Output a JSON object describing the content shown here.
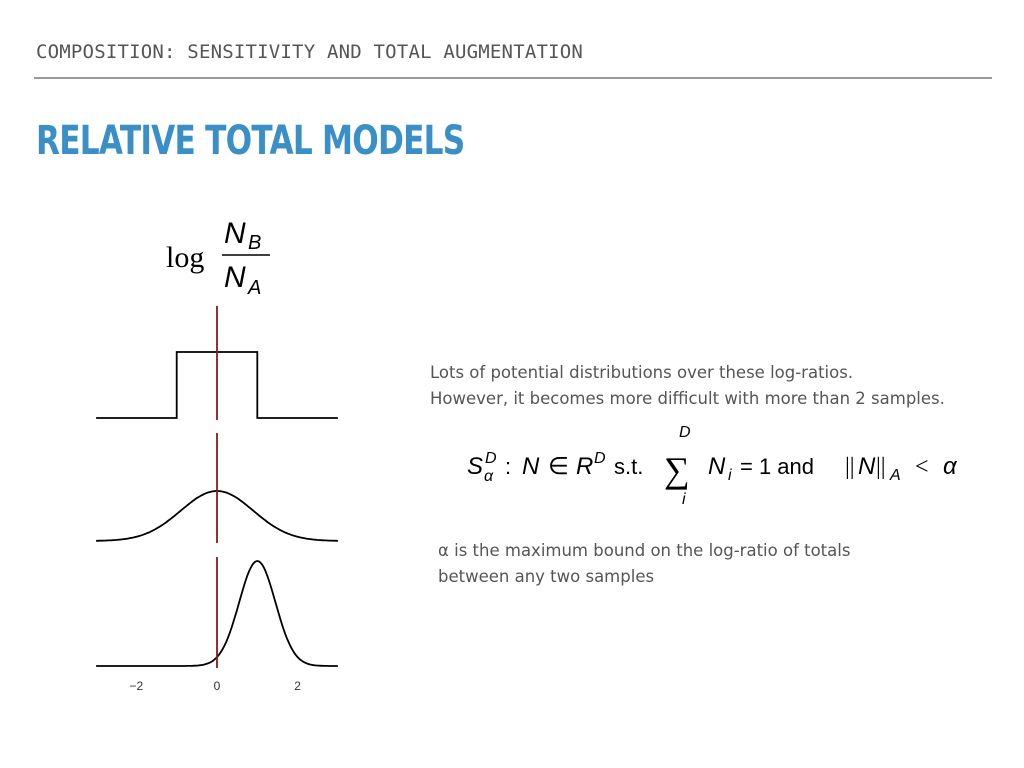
{
  "header": {
    "kicker": "COMPOSITION: SENSITIVITY AND TOTAL AUGMENTATION",
    "title": "RELATIVE TOTAL MODELS"
  },
  "formula_top": {
    "log": "log",
    "numerator_base": "N",
    "numerator_sub": "B",
    "denominator_base": "N",
    "denominator_sub": "A"
  },
  "description_1": {
    "line1": "Lots of potential distributions over these log-ratios.",
    "line2": "However, it becomes more difficult with more than 2 samples."
  },
  "simplex_formula": {
    "S": "S",
    "S_sup": "D",
    "S_sub": "α",
    "colon": ":",
    "N1": "N",
    "in": "∈",
    "R": "R",
    "R_sup": "D",
    "st": "s.t.",
    "sum": "∑",
    "sum_top": "D",
    "sum_bottom": "i",
    "Ni": "N",
    "Ni_sub": "i",
    "eq_one": "= 1 and",
    "norm_open": "||",
    "norm_N": "N",
    "norm_close": "||",
    "norm_sub": "A",
    "lt": "<",
    "alpha": "α"
  },
  "description_2": {
    "line1": "α is the maximum bound on the log-ratio of totals",
    "line2": "between any two samples"
  },
  "chart_data": {
    "type": "line",
    "title": "",
    "xlabel": "",
    "ylabel": "",
    "xlim": [
      -3.2,
      3.2
    ],
    "x_ticks": [
      "−2",
      "0",
      "2"
    ],
    "x_tick_values": [
      -2,
      0,
      2
    ],
    "reference_line_x": 0,
    "colors": {
      "curve": "#000000",
      "reference": "#8b1a1a"
    },
    "panels": [
      {
        "name": "uniform",
        "x": [
          -3.0,
          -1.0,
          -1.0,
          1.0,
          1.0,
          3.0
        ],
        "y": [
          0,
          0,
          1,
          1,
          0,
          0
        ]
      },
      {
        "name": "normal_centered",
        "mean": 0,
        "sd": 0.9,
        "x_range": [
          -3.0,
          3.0
        ]
      },
      {
        "name": "normal_shifted",
        "mean": 1.0,
        "sd": 0.45,
        "x_range": [
          -3.0,
          3.0
        ]
      }
    ]
  }
}
